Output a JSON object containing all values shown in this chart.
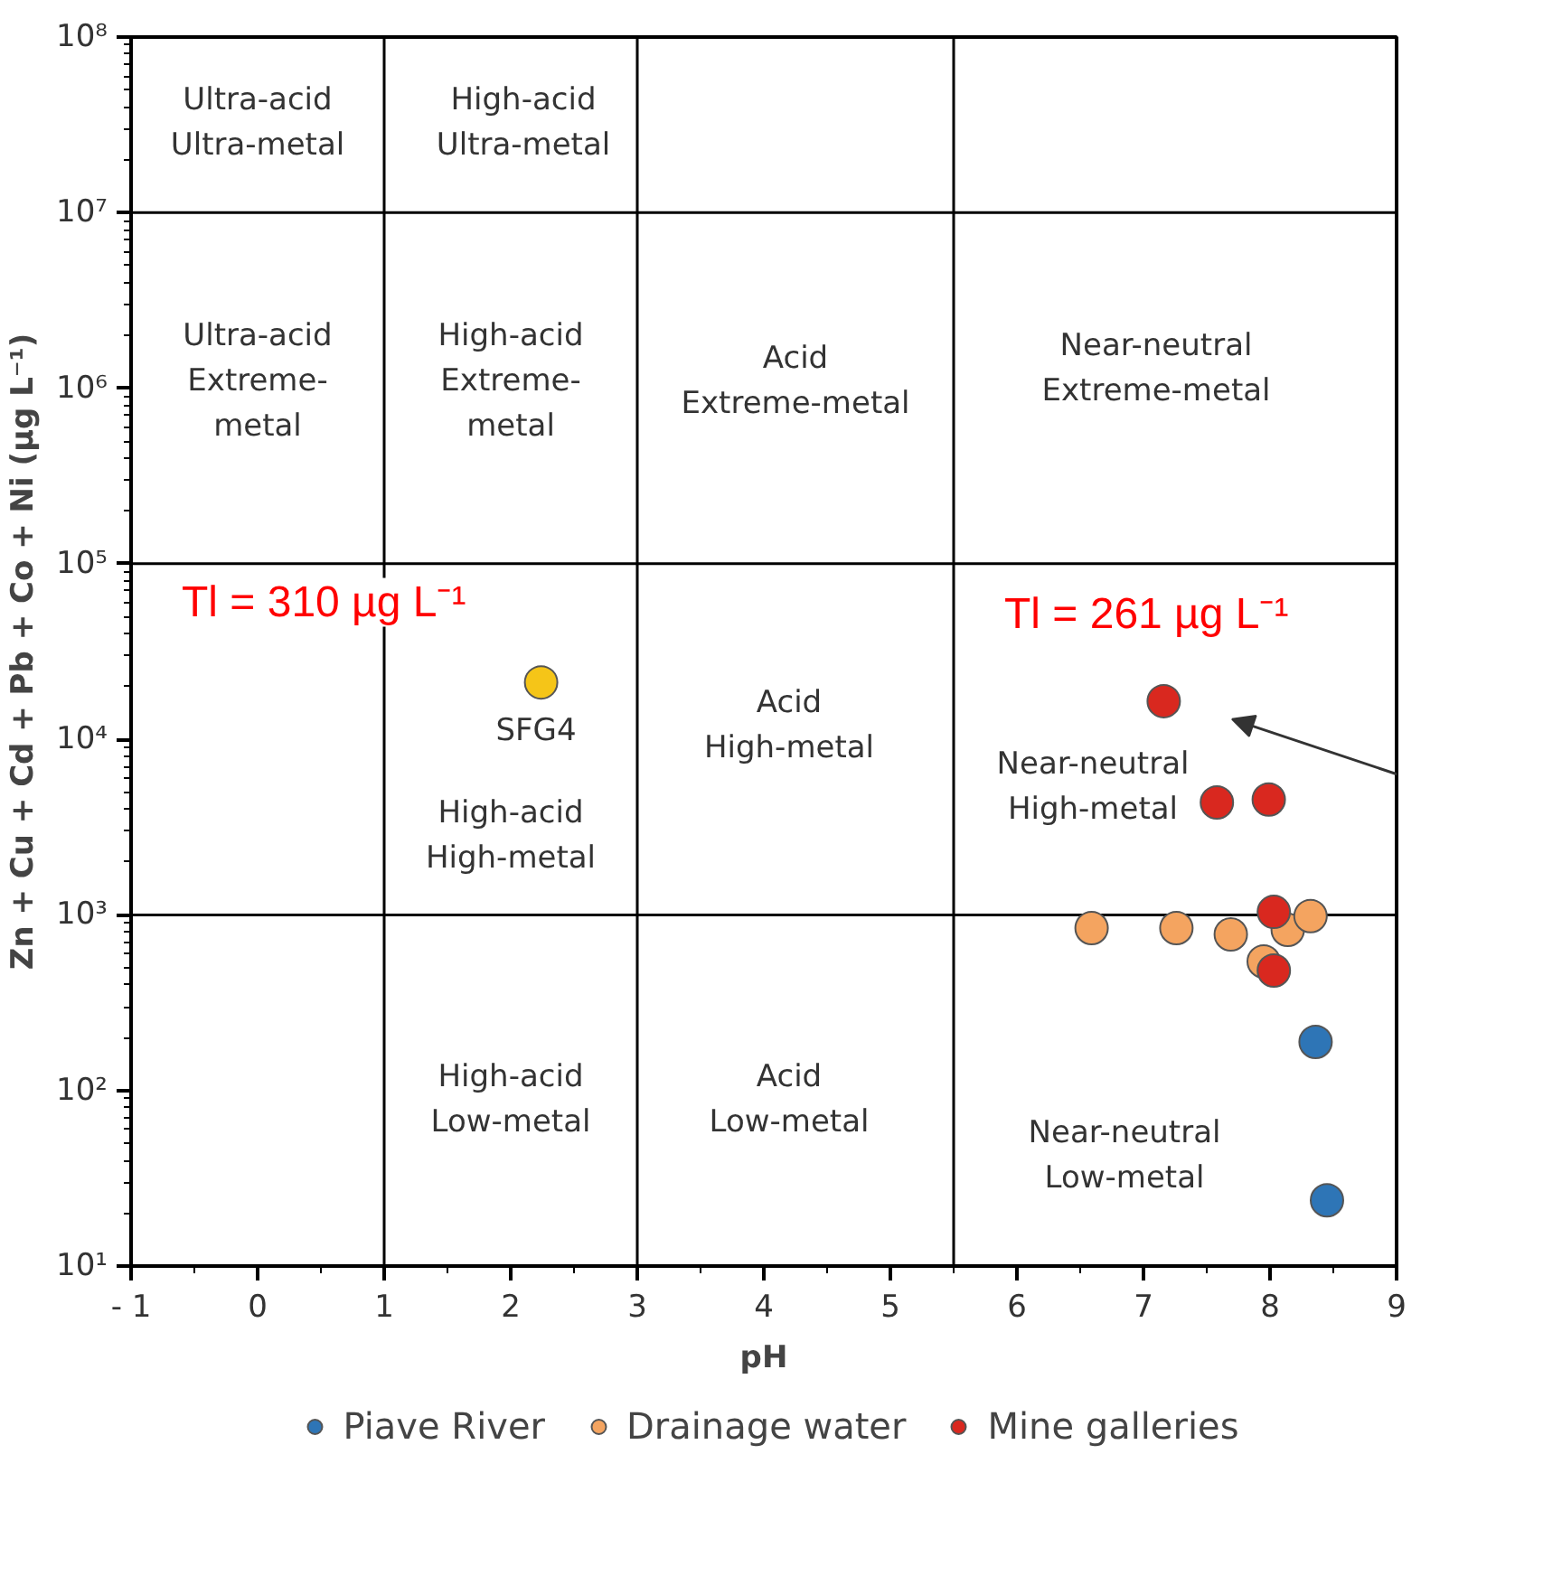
{
  "chart_data": {
    "type": "scatter",
    "xlabel": "pH",
    "ylabel": "Zn + Cu + Cd + Pb + Co + Ni (µg L⁻¹)",
    "log": "y",
    "grid": false,
    "legend": "bottom",
    "marker": "circle",
    "xlim": [
      -1,
      9
    ],
    "ylim": [
      10,
      100000000
    ],
    "xticks": [
      {
        "value": -1,
        "label": "- 1"
      },
      0,
      1,
      2,
      3,
      4,
      5,
      6,
      7,
      8,
      9
    ],
    "yticks": [
      {
        "value": 10,
        "label": "10¹"
      },
      {
        "value": 100,
        "label": "10²"
      },
      {
        "value": 1000,
        "label": "10³"
      },
      {
        "value": 10000,
        "label": "10⁴"
      },
      {
        "value": 100000,
        "label": "10⁵"
      },
      {
        "value": 1000000,
        "label": "10⁶"
      },
      {
        "value": 10000000,
        "label": "10⁷"
      },
      {
        "value": 100000000,
        "label": "10⁸"
      }
    ],
    "series": [
      {
        "name": "Piave River",
        "color": "#2e75b6",
        "x": [
          8.36,
          8.45
        ],
        "values": [
          189,
          23.7
        ]
      },
      {
        "name": "Drainage water",
        "color": "#f4a460",
        "x": [
          6.59,
          7.26,
          7.69,
          7.95,
          8.14,
          8.32
        ],
        "values": [
          841,
          841,
          774,
          543,
          822,
          985
        ]
      },
      {
        "name": "Mine galleries",
        "color": "#d9281f",
        "x": [
          7.16,
          7.58,
          7.99,
          8.03,
          8.03
        ],
        "values": [
          16500,
          4370,
          4540,
          1040,
          482
        ]
      },
      {
        "color": "#f5c518",
        "x": [
          2.24
        ],
        "values": [
          21100
        ]
      }
    ],
    "ref_lines": [
      {
        "axis": "x",
        "value": 1
      },
      {
        "axis": "x",
        "value": 3
      },
      {
        "axis": "x",
        "value": 5.5
      },
      {
        "axis": "y",
        "value": 1000
      },
      {
        "axis": "y",
        "value": 100000
      },
      {
        "axis": "y",
        "value": 10000000
      }
    ],
    "annotations": [
      "Tl = 310 µg L⁻¹",
      "Tl = 261 µg L⁻¹",
      "SFG4",
      "Ultra-acid\nUltra-metal",
      "High-acid\nUltra-metal",
      "Ultra-acid\nExtreme-\nmetal",
      "High-acid\nExtreme-\nmetal",
      "Acid\nExtreme-metal",
      "Near-neutral\nExtreme-metal",
      "Acid\nHigh-metal",
      "Near-neutral\nHigh-metal",
      "High-acid\nHigh-metal",
      "High-acid\nLow-metal",
      "Acid\nLow-metal",
      "Near-neutral\nLow-metal"
    ]
  }
}
